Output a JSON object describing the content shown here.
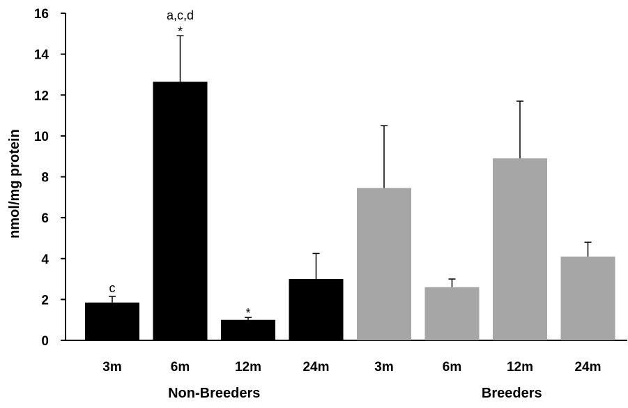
{
  "chart_data": {
    "type": "bar",
    "title": "",
    "xlabel": "",
    "ylabel": "nmol/mg protein",
    "ylim": [
      0,
      16
    ],
    "yticks": [
      0,
      2,
      4,
      6,
      8,
      10,
      12,
      14,
      16
    ],
    "grid": false,
    "legend": "none",
    "groups": [
      {
        "label": "Non-Breeders",
        "color": "#000000",
        "categories": [
          "3m",
          "6m",
          "12m",
          "24m"
        ],
        "values": [
          1.85,
          12.65,
          1.0,
          3.0
        ],
        "errors": [
          0.3,
          2.25,
          0.12,
          1.25
        ],
        "annotations": [
          "c",
          "a,c,d\n*",
          "*",
          ""
        ]
      },
      {
        "label": "Breeders",
        "color": "#a6a6a6",
        "categories": [
          "3m",
          "6m",
          "12m",
          "24m"
        ],
        "values": [
          7.45,
          2.6,
          8.9,
          4.1
        ],
        "errors": [
          3.05,
          0.4,
          2.8,
          0.7
        ],
        "annotations": [
          "",
          "",
          "",
          ""
        ]
      }
    ]
  }
}
